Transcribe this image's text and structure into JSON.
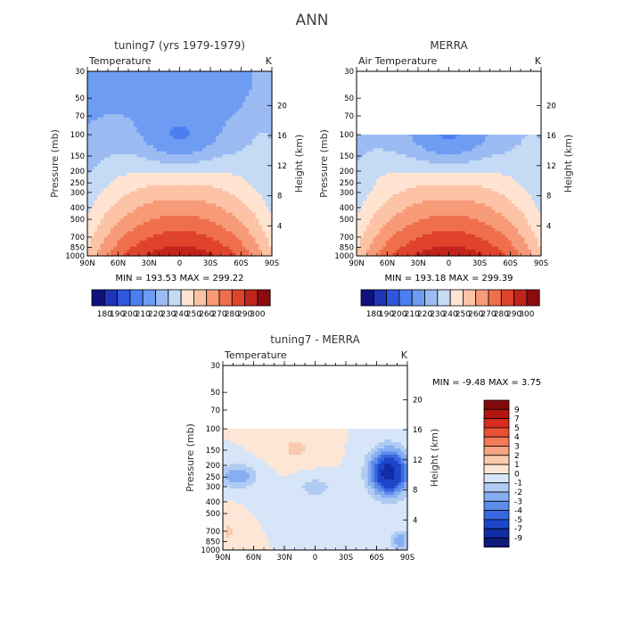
{
  "page": {
    "main_title": "ANN"
  },
  "chart_data": [
    {
      "type": "heatmap",
      "title": "tuning7 (yrs 1979-1979)",
      "field": "Temperature",
      "units": "K",
      "ylabel": "Pressure (mb)",
      "y2label": "Height (km)",
      "x_ticks": [
        "90N",
        "60N",
        "30N",
        "0",
        "30S",
        "60S",
        "90S"
      ],
      "y_ticks": [
        "30",
        "50",
        "70",
        "100",
        "150",
        "200",
        "250",
        "300",
        "400",
        "500",
        "700",
        "850",
        "1000"
      ],
      "y2_ticks": [
        "20",
        "16",
        "12",
        "8",
        "4"
      ],
      "minmax": "MIN = 193.53   MAX = 299.22",
      "colorbar": [
        "180",
        "190",
        "200",
        "210",
        "220",
        "230",
        "240",
        "250",
        "260",
        "270",
        "280",
        "290",
        "300"
      ],
      "data_top_pressure": 30
    },
    {
      "type": "heatmap",
      "title": "MERRA",
      "field": "Air Temperature",
      "units": "K",
      "ylabel": "Pressure (mb)",
      "y2label": "Height (km)",
      "x_ticks": [
        "90N",
        "60N",
        "30N",
        "0",
        "30S",
        "60S",
        "90S"
      ],
      "y_ticks": [
        "30",
        "50",
        "70",
        "100",
        "150",
        "200",
        "250",
        "300",
        "400",
        "500",
        "700",
        "850",
        "1000"
      ],
      "y2_ticks": [
        "20",
        "16",
        "12",
        "8",
        "4"
      ],
      "minmax": "MIN = 193.18   MAX = 299.39",
      "colorbar": [
        "180",
        "190",
        "200",
        "210",
        "220",
        "230",
        "240",
        "250",
        "260",
        "270",
        "280",
        "290",
        "300"
      ],
      "data_top_pressure": 100
    },
    {
      "type": "heatmap",
      "title": "tuning7 - MERRA",
      "field": "Temperature",
      "units": "K",
      "ylabel": "Pressure (mb)",
      "y2label": "Height (km)",
      "x_ticks": [
        "90N",
        "60N",
        "30N",
        "0",
        "30S",
        "60S",
        "90S"
      ],
      "y_ticks": [
        "30",
        "50",
        "70",
        "100",
        "150",
        "200",
        "250",
        "300",
        "400",
        "500",
        "700",
        "850",
        "1000"
      ],
      "y2_ticks": [
        "20",
        "16",
        "12",
        "8",
        "4"
      ],
      "minmax": "MIN =   -9.48   MAX =    3.75",
      "colorbar": [
        "9",
        "7",
        "5",
        "4",
        "3",
        "2",
        "1",
        "0",
        "-1",
        "-2",
        "-3",
        "-4",
        "-5",
        "-7",
        "-9"
      ],
      "data_top_pressure": 100
    }
  ],
  "palettes": {
    "abs": [
      "#10117f",
      "#1f34b8",
      "#2e57de",
      "#4c7ef2",
      "#6e9cf3",
      "#9bbbf2",
      "#c4daf5",
      "#ffe4d2",
      "#fcc3a6",
      "#f79a78",
      "#ef6f4d",
      "#e0432c",
      "#c1241b",
      "#8c0b0d"
    ],
    "diff": [
      "#820a0b",
      "#b31611",
      "#d62d1f",
      "#ea5135",
      "#f27a57",
      "#f6a481",
      "#facaad",
      "#fde6d6",
      "#d6e5f7",
      "#b0cbf2",
      "#87aef0",
      "#5d8ceb",
      "#3867e0",
      "#1c45c9",
      "#122ca4",
      "#0f1a7a"
    ]
  }
}
